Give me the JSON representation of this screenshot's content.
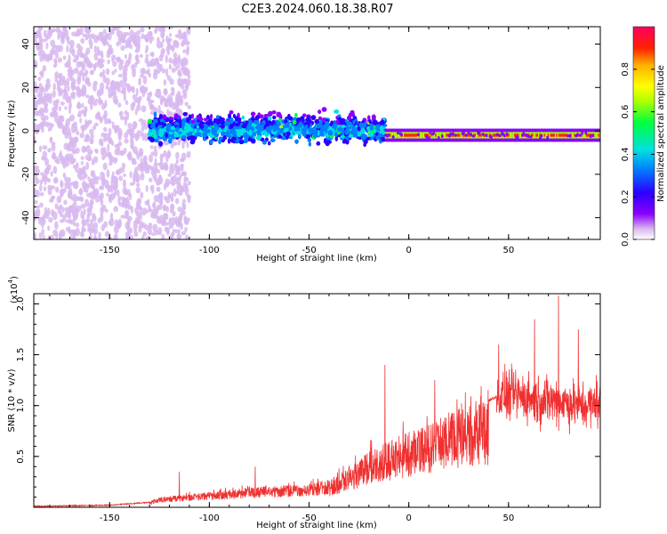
{
  "title": "C2E3.2024.060.18.38.R07",
  "chart_data": [
    {
      "type": "heatmap",
      "title": "C2E3.2024.060.18.38.R07",
      "xlabel": "Height of straight line (km)",
      "ylabel": "Frequency (Hz)",
      "xlim": [
        -188,
        96
      ],
      "ylim": [
        -50,
        48
      ],
      "xticks": [
        "-150",
        "-100",
        "-50",
        "0",
        "50"
      ],
      "yticks": [
        "40",
        "20",
        "0",
        "-20",
        "-40"
      ],
      "xtick_values": [
        -150,
        -100,
        -50,
        0,
        50
      ],
      "ytick_values": [
        40,
        20,
        0,
        -20,
        -40
      ],
      "colorbar": {
        "label": "Normalized spectral amplitude",
        "range": [
          0,
          1
        ],
        "ticks": [
          "0.0",
          "0.2",
          "0.4",
          "0.6",
          "0.8"
        ],
        "tick_values": [
          0.0,
          0.2,
          0.4,
          0.6,
          0.8
        ],
        "colors": [
          "#ffffff",
          "#d8b8f0",
          "#8a00ff",
          "#2a00ff",
          "#0080ff",
          "#00e0e0",
          "#00ff40",
          "#b0ff00",
          "#ffff00",
          "#ffb000",
          "#ff2000",
          "#ff0060"
        ]
      },
      "description_values": {
        "scatter_region_height": [
          -188,
          -120
        ],
        "broad_signal_height": [
          -130,
          -12
        ],
        "narrow_line_height": [
          -12,
          96
        ],
        "narrow_line_frequency": -2
      }
    },
    {
      "type": "line",
      "xlabel": "Height of straight line (km)",
      "ylabel": "SNR (10 * v/v)",
      "y_multiplier": "(x10",
      "y_multiplier_exp": "4",
      "xlim": [
        -188,
        96
      ],
      "ylim": [
        0,
        2.1
      ],
      "xticks": [
        "-150",
        "-100",
        "-50",
        "0",
        "50"
      ],
      "yticks": [
        "0.5",
        "1.0",
        "1.5",
        "2.0"
      ],
      "xtick_values": [
        -150,
        -100,
        -50,
        0,
        50
      ],
      "ytick_values": [
        0.5,
        1.0,
        1.5,
        2.0
      ],
      "series": [
        {
          "name": "SNR",
          "color": "#f03030",
          "envelope_x": [
            -188,
            -150,
            -130,
            -125,
            -110,
            -90,
            -80,
            -60,
            -50,
            -40,
            -30,
            -20,
            -10,
            0,
            10,
            20,
            30,
            40,
            45,
            55,
            65,
            75,
            85,
            96
          ],
          "envelope_y": [
            0.01,
            0.02,
            0.05,
            0.1,
            0.13,
            0.17,
            0.2,
            0.22,
            0.23,
            0.27,
            0.4,
            0.55,
            0.65,
            0.75,
            0.8,
            0.95,
            1.0,
            1.05,
            1.1,
            1.1,
            1.05,
            1.05,
            1.0,
            1.0
          ],
          "peaks": [
            {
              "x": -12,
              "y": 1.4
            },
            {
              "x": 13,
              "y": 1.25
            },
            {
              "x": -115,
              "y": 0.35
            },
            {
              "x": -77,
              "y": 0.4
            },
            {
              "x": 45,
              "y": 1.6
            },
            {
              "x": 63,
              "y": 1.85
            },
            {
              "x": 75,
              "y": 2.08
            },
            {
              "x": 85,
              "y": 1.75
            },
            {
              "x": 94,
              "y": 1.3
            }
          ]
        }
      ]
    }
  ]
}
